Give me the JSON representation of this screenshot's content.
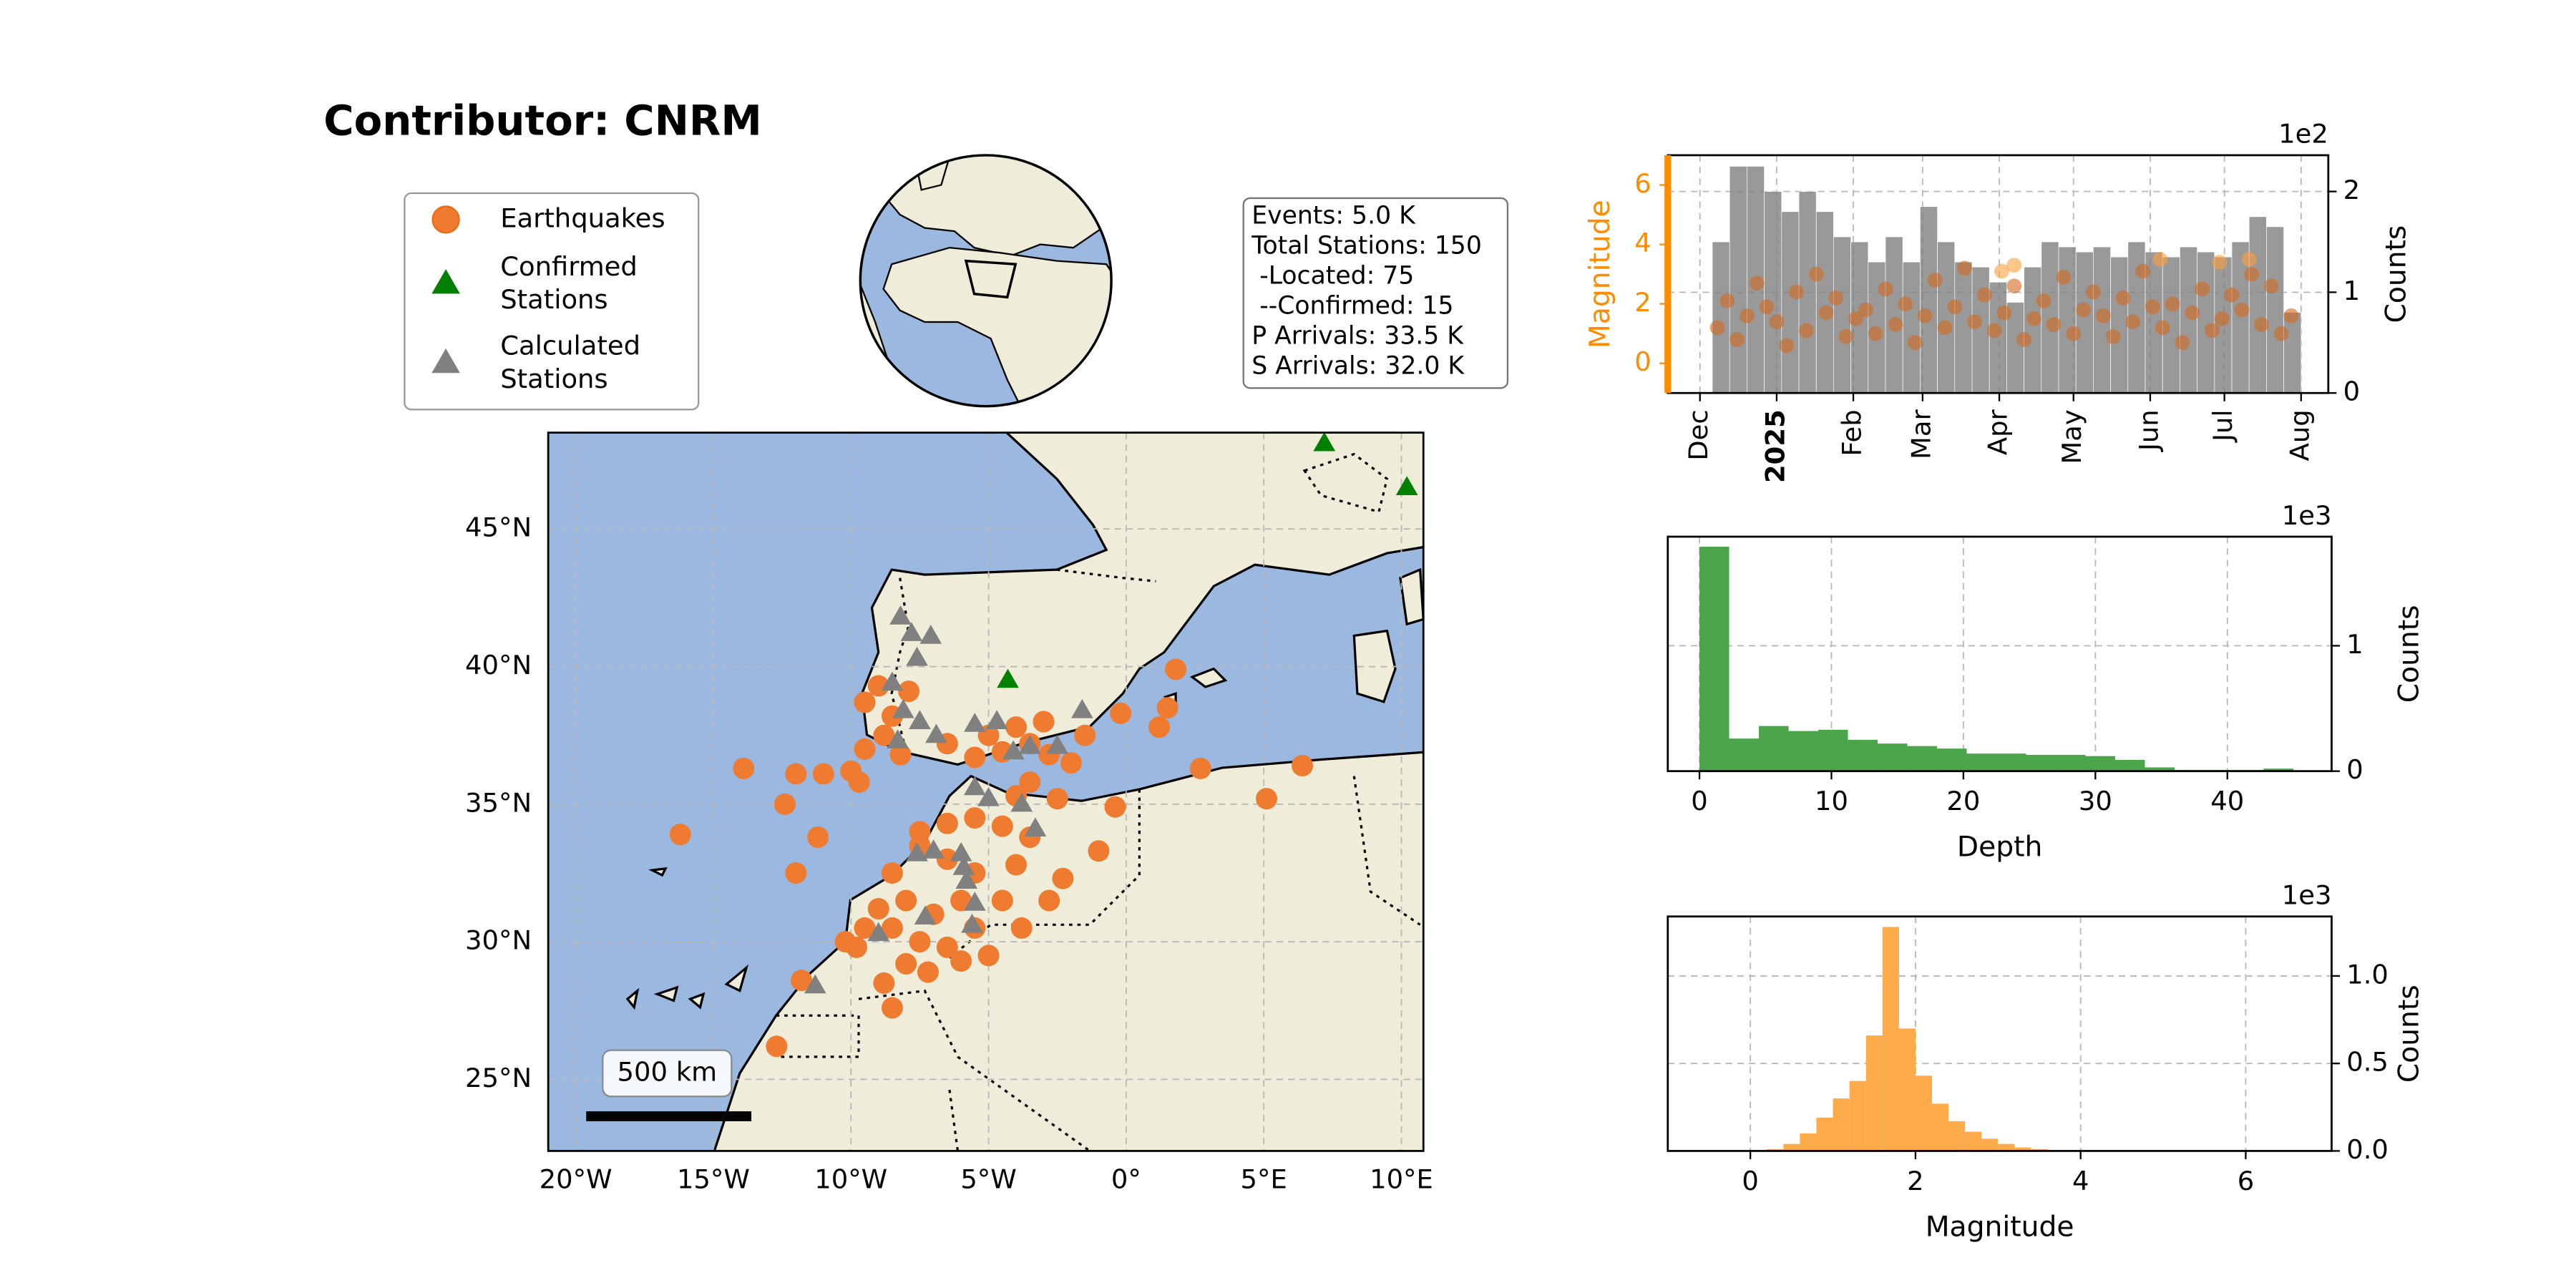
{
  "title": "Contributor: CNRM",
  "stats": [
    "Events: 5.0 K",
    "Total Stations: 150",
    " -Located: 75",
    " --Confirmed: 15",
    "P Arrivals: 33.5 K",
    "S Arrivals: 32.0 K"
  ],
  "chart_data": [
    {
      "type": "map",
      "scale_label": "500 km",
      "grid": true,
      "xlim": [
        -21,
        10.8
      ],
      "ylim": [
        22.4,
        48.5
      ],
      "xticks": [
        {
          "value": -20,
          "label": "20°W"
        },
        {
          "value": -15,
          "label": "15°W"
        },
        {
          "value": -10,
          "label": "10°W"
        },
        {
          "value": -5,
          "label": "5°W"
        },
        {
          "value": 0,
          "label": "0°"
        },
        {
          "value": 5,
          "label": "5°E"
        },
        {
          "value": 10,
          "label": "10°E"
        }
      ],
      "yticks": [
        {
          "value": 25,
          "label": "25°N"
        },
        {
          "value": 30,
          "label": "30°N"
        },
        {
          "value": 35,
          "label": "35°N"
        },
        {
          "value": 40,
          "label": "40°N"
        },
        {
          "value": 45,
          "label": "45°N"
        }
      ],
      "series": [
        {
          "name": "Earthquakes",
          "color": "#ee7b30",
          "marker": "circle",
          "x": [
            -16.2,
            -13.9,
            -12.4,
            -12,
            -11.2,
            -11.8,
            -12.7,
            -8.5,
            2.7,
            5.1,
            6.4,
            1.8,
            1.5,
            1.2,
            -0.2,
            -0.4,
            -1,
            -9.5,
            -9,
            -8.5,
            -9.5,
            -8.8,
            -7.9,
            -8.2,
            -10,
            -11,
            -12,
            -9.7,
            -5.5,
            -4.5,
            -3.5,
            -2.8,
            -2,
            -3.5,
            -4,
            -2.5,
            -1.5,
            -4,
            -3,
            -5,
            -6.5,
            -7.5,
            -6.5,
            -5.5,
            -6,
            -7,
            -8,
            -8.5,
            -7.5,
            -6.5,
            -5.5,
            -4.5,
            -4,
            -3.5,
            -4.5,
            -5.5,
            -6.5,
            -7.5,
            -8.5,
            -9,
            -9.5,
            -8,
            -7.2,
            -6,
            -5,
            -3.8,
            -2.8,
            -2.3,
            -9.8,
            -8.8,
            -10.2
          ],
          "y": [
            33.9,
            36.3,
            35,
            32.5,
            33.8,
            28.6,
            26.2,
            27.6,
            36.3,
            35.2,
            36.4,
            39.9,
            38.5,
            37.8,
            38.3,
            34.9,
            33.3,
            38.7,
            39.3,
            38.2,
            37,
            37.5,
            39.1,
            36.8,
            36.2,
            36.1,
            36.1,
            35.8,
            36.7,
            36.9,
            37.2,
            36.8,
            36.5,
            35.8,
            35.3,
            35.2,
            37.5,
            37.8,
            38,
            37.5,
            37.2,
            33.5,
            33,
            32.5,
            31.5,
            31,
            31.5,
            30.5,
            30,
            29.8,
            30.5,
            31.5,
            32.8,
            33.8,
            34.2,
            34.5,
            34.3,
            34,
            32.5,
            31.2,
            30.5,
            29.2,
            28.9,
            29.3,
            29.5,
            30.5,
            31.5,
            32.3,
            29.8,
            28.5,
            30
          ]
        },
        {
          "name": "Confirmed Stations",
          "color": "#008000",
          "marker": "triangle",
          "x": [
            7.2,
            10.2,
            -4.3
          ],
          "y": [
            48.1,
            46.5,
            39.5
          ]
        },
        {
          "name": "Calculated Stations",
          "color": "#808080",
          "marker": "triangle",
          "x": [
            -8.2,
            -7.8,
            -7.1,
            -7.6,
            -8.5,
            -8.1,
            -7.5,
            -8.3,
            -6.9,
            -5.5,
            -4.7,
            -4.1,
            -3.5,
            -2.5,
            -1.6,
            -5.5,
            -5,
            -3.8,
            -3.3,
            -6,
            -5.9,
            -7,
            -7.6,
            -5.8,
            -5.5,
            -7.3,
            -5.6,
            -11.3,
            -9
          ],
          "y": [
            41.8,
            41.2,
            41.1,
            40.3,
            39.4,
            38.4,
            38,
            37.3,
            37.5,
            37.9,
            38,
            36.9,
            37.1,
            37.1,
            38.4,
            35.6,
            35.2,
            35,
            34.1,
            33.2,
            32.7,
            33.3,
            33.2,
            32.2,
            31.4,
            30.9,
            30.6,
            28.4,
            30.3
          ]
        }
      ]
    },
    {
      "type": "combo",
      "grid": true,
      "ylabel": "Magnitude",
      "y2label": "Counts",
      "y2_offset_label": "1e2",
      "xlim": [
        20045,
        20312
      ],
      "xticks": [
        {
          "value": 20058,
          "label": "Dec"
        },
        {
          "value": 20089,
          "label": "2025",
          "bold": true
        },
        {
          "value": 20120,
          "label": "Feb"
        },
        {
          "value": 20148,
          "label": "Mar"
        },
        {
          "value": 20179,
          "label": "Apr"
        },
        {
          "value": 20209,
          "label": "May"
        },
        {
          "value": 20240,
          "label": "Jun"
        },
        {
          "value": 20270,
          "label": "Jul"
        },
        {
          "value": 20301,
          "label": "Aug"
        }
      ],
      "ylim": [
        -1,
        7
      ],
      "yticks": [
        0,
        2,
        4,
        6
      ],
      "ycolor": "#ff8c00",
      "y2lim": [
        0,
        2.36
      ],
      "y2ticks": [
        0,
        1,
        2
      ],
      "bins": [
        20063,
        20070,
        20077,
        20084,
        20091,
        20098,
        20105,
        20112,
        20119,
        20126,
        20133,
        20140,
        20147,
        20154,
        20161,
        20168,
        20175,
        20182,
        20189,
        20196,
        20203,
        20210,
        20217,
        20224,
        20231,
        20238,
        20245,
        20252,
        20259,
        20266,
        20273,
        20280,
        20287,
        20294,
        20301
      ],
      "series": [
        {
          "type": "histogram",
          "axis": "y2",
          "color": "#808080",
          "values": [
            1.5,
            2.25,
            2.25,
            2.0,
            1.8,
            2.0,
            1.8,
            1.55,
            1.5,
            1.3,
            1.55,
            1.3,
            1.85,
            1.5,
            1.3,
            1.25,
            1.1,
            0.9,
            1.25,
            1.5,
            1.45,
            1.4,
            1.45,
            1.35,
            1.5,
            1.4,
            1.35,
            1.45,
            1.4,
            1.35,
            1.5,
            1.75,
            1.65,
            0.8
          ]
        },
        {
          "type": "scatter",
          "color": "#d2691e",
          "x": [
            20065,
            20069,
            20073,
            20077,
            20081,
            20085,
            20089,
            20093,
            20097,
            20101,
            20105,
            20109,
            20113,
            20117,
            20121,
            20125,
            20129,
            20133,
            20137,
            20141,
            20145,
            20149,
            20153,
            20157,
            20161,
            20165,
            20169,
            20173,
            20177,
            20181,
            20185,
            20189,
            20193,
            20197,
            20201,
            20205,
            20209,
            20213,
            20217,
            20221,
            20225,
            20229,
            20233,
            20237,
            20241,
            20245,
            20249,
            20253,
            20257,
            20261,
            20265,
            20269,
            20273,
            20277,
            20281,
            20285,
            20289,
            20293,
            20297
          ],
          "values": [
            1.2,
            2.1,
            0.8,
            1.6,
            2.7,
            1.9,
            1.4,
            0.6,
            2.4,
            1.1,
            3.0,
            1.7,
            2.2,
            0.9,
            1.5,
            1.8,
            1.0,
            2.5,
            1.3,
            2.0,
            0.7,
            1.6,
            2.8,
            1.2,
            1.9,
            3.2,
            1.4,
            2.3,
            1.1,
            1.7,
            2.6,
            0.8,
            1.5,
            2.1,
            1.3,
            2.9,
            1.0,
            1.8,
            2.4,
            1.6,
            0.9,
            2.2,
            1.4,
            3.1,
            1.9,
            1.2,
            2.0,
            0.7,
            1.7,
            2.5,
            1.1,
            1.5,
            2.3,
            1.8,
            3.0,
            1.3,
            2.6,
            1.0,
            1.6
          ]
        },
        {
          "type": "scatter",
          "color": "#ffa040",
          "x": [
            20180,
            20185,
            20244,
            20268,
            20280
          ],
          "values": [
            3.1,
            3.3,
            3.5,
            3.4,
            3.5
          ]
        }
      ]
    },
    {
      "type": "histogram",
      "grid": true,
      "color": "#4ba54b",
      "xlabel": "Depth",
      "ylabel": "Counts",
      "y_offset_label": "1e3",
      "xlim": [
        -2.4,
        47.9
      ],
      "xticks": [
        0,
        10,
        20,
        30,
        40
      ],
      "ylim": [
        0,
        1.87
      ],
      "yticks": [
        0,
        1
      ],
      "bins": [
        0,
        2.25,
        4.5,
        6.75,
        9,
        11.25,
        13.5,
        15.75,
        18,
        20.25,
        22.5,
        24.75,
        27,
        29.25,
        31.5,
        33.75,
        36,
        38.25,
        40.5,
        42.75,
        45
      ],
      "values": [
        1.79,
        0.26,
        0.36,
        0.32,
        0.33,
        0.25,
        0.22,
        0.2,
        0.18,
        0.14,
        0.14,
        0.13,
        0.13,
        0.12,
        0.09,
        0.03,
        0.01,
        0.01,
        0.01,
        0.02
      ]
    },
    {
      "type": "histogram",
      "grid": true,
      "color": "#ffab4a",
      "xlabel": "Magnitude",
      "ylabel": "Counts",
      "y_offset_label": "1e3",
      "xlim": [
        -1,
        7.04
      ],
      "xticks": [
        0,
        2,
        4,
        6
      ],
      "ylim": [
        0,
        1.34
      ],
      "yticks": [
        {
          "value": 0,
          "label": "0.0"
        },
        {
          "value": 0.5,
          "label": "0.5"
        },
        {
          "value": 1,
          "label": "1.0"
        }
      ],
      "bins": [
        0,
        0.2,
        0.4,
        0.6,
        0.8,
        1.0,
        1.2,
        1.4,
        1.6,
        1.8,
        2.0,
        2.2,
        2.4,
        2.6,
        2.8,
        3.0,
        3.2,
        3.4,
        3.6
      ],
      "values": [
        0.002,
        0.01,
        0.04,
        0.1,
        0.19,
        0.3,
        0.4,
        0.66,
        1.28,
        0.7,
        0.43,
        0.27,
        0.17,
        0.11,
        0.07,
        0.04,
        0.02,
        0.01
      ]
    }
  ]
}
